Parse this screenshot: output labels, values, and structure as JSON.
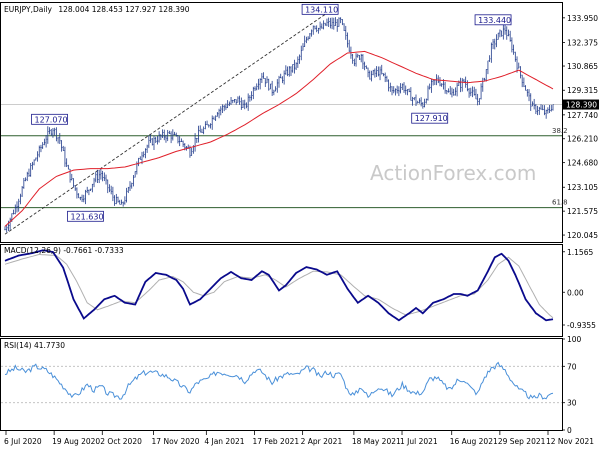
{
  "chart_data": {
    "type": "line",
    "title": "EURJPY,Daily",
    "ohlc_header": "128.004 128.453 127.927 128.390",
    "watermark": "ActionForex.com",
    "current_price": "128.390",
    "colors": {
      "price": "#1f3a8a",
      "ma": "#e0202a",
      "macd": "#0a0a8c",
      "signal": "#b0b0b0",
      "rsi": "#4a90d9",
      "hline": "#2e5e2e",
      "trend": "#333333"
    },
    "price_panel": {
      "ylim": [
        119.6,
        134.9
      ],
      "y_ticks": [
        "133.950",
        "132.375",
        "130.865",
        "129.315",
        "127.740",
        "126.210",
        "124.680",
        "123.105",
        "121.575",
        "120.045"
      ],
      "horizontal_levels": [
        {
          "value": 126.4,
          "label": "38.2"
        },
        {
          "value": 121.8,
          "label": "61.8"
        }
      ],
      "callouts": [
        {
          "text": "127.070",
          "x": 26,
          "y": 127.07
        },
        {
          "text": "121.630",
          "x": 47,
          "y": 121.63
        },
        {
          "text": "134.110",
          "x": 184,
          "y": 134.11
        },
        {
          "text": "127.910",
          "x": 248,
          "y": 127.91
        },
        {
          "text": "133.440",
          "x": 285,
          "y": 133.44
        }
      ],
      "trendline": {
        "x": [
          0,
          190
        ],
        "y": [
          120.1,
          134.4
        ]
      },
      "close": [
        [
          0,
          120.4
        ],
        [
          6,
          121.8
        ],
        [
          12,
          123.6
        ],
        [
          18,
          125.0
        ],
        [
          24,
          126.3
        ],
        [
          28,
          126.9
        ],
        [
          32,
          126.1
        ],
        [
          36,
          124.4
        ],
        [
          40,
          123.2
        ],
        [
          44,
          122.4
        ],
        [
          48,
          122.8
        ],
        [
          52,
          123.6
        ],
        [
          56,
          124.0
        ],
        [
          60,
          123.1
        ],
        [
          64,
          122.3
        ],
        [
          68,
          121.9
        ],
        [
          72,
          122.9
        ],
        [
          76,
          124.2
        ],
        [
          80,
          125.3
        ],
        [
          84,
          125.9
        ],
        [
          90,
          126.3
        ],
        [
          96,
          126.5
        ],
        [
          102,
          126.1
        ],
        [
          108,
          125.4
        ],
        [
          112,
          126.4
        ],
        [
          118,
          127.0
        ],
        [
          124,
          128.0
        ],
        [
          130,
          128.4
        ],
        [
          136,
          128.7
        ],
        [
          140,
          128.2
        ],
        [
          146,
          129.6
        ],
        [
          150,
          130.3
        ],
        [
          156,
          129.3
        ],
        [
          160,
          129.9
        ],
        [
          166,
          130.6
        ],
        [
          170,
          130.9
        ],
        [
          176,
          132.6
        ],
        [
          180,
          133.5
        ],
        [
          184,
          133.2
        ],
        [
          188,
          133.6
        ],
        [
          192,
          133.5
        ],
        [
          196,
          133.7
        ],
        [
          200,
          132.3
        ],
        [
          204,
          131.2
        ],
        [
          208,
          131.6
        ],
        [
          212,
          130.2
        ],
        [
          218,
          130.5
        ],
        [
          222,
          130.1
        ],
        [
          226,
          129.2
        ],
        [
          232,
          129.6
        ],
        [
          236,
          129.0
        ],
        [
          240,
          128.6
        ],
        [
          244,
          128.4
        ],
        [
          248,
          129.5
        ],
        [
          252,
          130.0
        ],
        [
          256,
          129.7
        ],
        [
          260,
          129.0
        ],
        [
          264,
          129.5
        ],
        [
          268,
          129.9
        ],
        [
          272,
          129.2
        ],
        [
          276,
          128.6
        ],
        [
          280,
          130.2
        ],
        [
          284,
          132.0
        ],
        [
          288,
          132.8
        ],
        [
          292,
          133.2
        ],
        [
          296,
          132.1
        ],
        [
          300,
          130.6
        ],
        [
          304,
          129.4
        ],
        [
          308,
          128.2
        ],
        [
          312,
          128.1
        ],
        [
          316,
          127.8
        ],
        [
          320,
          128.4
        ]
      ],
      "ma": [
        [
          0,
          120.6
        ],
        [
          10,
          121.6
        ],
        [
          20,
          123.0
        ],
        [
          30,
          123.8
        ],
        [
          40,
          124.2
        ],
        [
          50,
          124.3
        ],
        [
          60,
          124.3
        ],
        [
          70,
          124.4
        ],
        [
          80,
          124.7
        ],
        [
          90,
          125.0
        ],
        [
          100,
          125.4
        ],
        [
          110,
          125.7
        ],
        [
          120,
          126.0
        ],
        [
          130,
          126.5
        ],
        [
          140,
          127.1
        ],
        [
          150,
          127.8
        ],
        [
          160,
          128.4
        ],
        [
          170,
          129.1
        ],
        [
          180,
          130.0
        ],
        [
          190,
          131.0
        ],
        [
          200,
          131.7
        ],
        [
          210,
          131.8
        ],
        [
          220,
          131.4
        ],
        [
          230,
          130.9
        ],
        [
          240,
          130.4
        ],
        [
          250,
          130.0
        ],
        [
          260,
          129.9
        ],
        [
          270,
          129.8
        ],
        [
          280,
          129.9
        ],
        [
          290,
          130.2
        ],
        [
          300,
          130.6
        ],
        [
          310,
          130.0
        ],
        [
          320,
          129.4
        ]
      ]
    },
    "macd_panel": {
      "label": "MACD(12,26,9) -0.7661 -0.7333",
      "ylim": [
        -1.25,
        1.35
      ],
      "y_ticks": [
        "1.1565",
        "0.00",
        "-0.9355"
      ],
      "macd": [
        [
          0,
          0.9
        ],
        [
          8,
          1.05
        ],
        [
          16,
          1.12
        ],
        [
          22,
          1.2
        ],
        [
          28,
          1.15
        ],
        [
          34,
          0.7
        ],
        [
          40,
          -0.2
        ],
        [
          46,
          -0.75
        ],
        [
          52,
          -0.5
        ],
        [
          58,
          -0.2
        ],
        [
          64,
          -0.1
        ],
        [
          70,
          -0.3
        ],
        [
          76,
          -0.35
        ],
        [
          82,
          0.3
        ],
        [
          88,
          0.55
        ],
        [
          94,
          0.5
        ],
        [
          100,
          0.35
        ],
        [
          104,
          0.1
        ],
        [
          108,
          -0.35
        ],
        [
          114,
          -0.2
        ],
        [
          120,
          0.1
        ],
        [
          126,
          0.4
        ],
        [
          132,
          0.58
        ],
        [
          138,
          0.4
        ],
        [
          144,
          0.35
        ],
        [
          150,
          0.6
        ],
        [
          154,
          0.5
        ],
        [
          160,
          0.05
        ],
        [
          164,
          0.2
        ],
        [
          170,
          0.55
        ],
        [
          176,
          0.72
        ],
        [
          182,
          0.65
        ],
        [
          188,
          0.5
        ],
        [
          194,
          0.6
        ],
        [
          200,
          0.1
        ],
        [
          206,
          -0.3
        ],
        [
          212,
          -0.1
        ],
        [
          218,
          -0.3
        ],
        [
          224,
          -0.6
        ],
        [
          230,
          -0.8
        ],
        [
          236,
          -0.6
        ],
        [
          240,
          -0.45
        ],
        [
          244,
          -0.6
        ],
        [
          250,
          -0.3
        ],
        [
          256,
          -0.2
        ],
        [
          262,
          -0.05
        ],
        [
          266,
          -0.05
        ],
        [
          270,
          -0.1
        ],
        [
          276,
          0.05
        ],
        [
          282,
          0.6
        ],
        [
          286,
          1.0
        ],
        [
          290,
          1.1
        ],
        [
          294,
          0.9
        ],
        [
          298,
          0.5
        ],
        [
          304,
          -0.2
        ],
        [
          310,
          -0.6
        ],
        [
          316,
          -0.8
        ],
        [
          320,
          -0.77
        ]
      ],
      "signal": [
        [
          0,
          0.8
        ],
        [
          10,
          0.95
        ],
        [
          20,
          1.08
        ],
        [
          30,
          1.05
        ],
        [
          36,
          0.8
        ],
        [
          42,
          0.3
        ],
        [
          48,
          -0.3
        ],
        [
          54,
          -0.5
        ],
        [
          60,
          -0.4
        ],
        [
          68,
          -0.25
        ],
        [
          76,
          -0.3
        ],
        [
          84,
          0.05
        ],
        [
          90,
          0.35
        ],
        [
          98,
          0.45
        ],
        [
          104,
          0.3
        ],
        [
          110,
          0.0
        ],
        [
          116,
          -0.1
        ],
        [
          122,
          0.0
        ],
        [
          128,
          0.3
        ],
        [
          136,
          0.45
        ],
        [
          144,
          0.4
        ],
        [
          152,
          0.5
        ],
        [
          158,
          0.35
        ],
        [
          164,
          0.15
        ],
        [
          172,
          0.4
        ],
        [
          180,
          0.6
        ],
        [
          188,
          0.58
        ],
        [
          196,
          0.5
        ],
        [
          204,
          0.15
        ],
        [
          210,
          -0.1
        ],
        [
          218,
          -0.2
        ],
        [
          226,
          -0.45
        ],
        [
          234,
          -0.65
        ],
        [
          242,
          -0.55
        ],
        [
          250,
          -0.4
        ],
        [
          258,
          -0.25
        ],
        [
          266,
          -0.1
        ],
        [
          274,
          -0.05
        ],
        [
          282,
          0.35
        ],
        [
          288,
          0.8
        ],
        [
          294,
          1.0
        ],
        [
          300,
          0.75
        ],
        [
          306,
          0.2
        ],
        [
          312,
          -0.35
        ],
        [
          318,
          -0.65
        ],
        [
          320,
          -0.73
        ]
      ]
    },
    "rsi_panel": {
      "label": "RSI(14) 41.7730",
      "ylim": [
        0,
        100
      ],
      "y_ticks": [
        "100",
        "70",
        "30",
        "0"
      ],
      "values": [
        [
          0,
          62
        ],
        [
          6,
          68
        ],
        [
          12,
          64
        ],
        [
          18,
          70
        ],
        [
          24,
          66
        ],
        [
          28,
          60
        ],
        [
          32,
          52
        ],
        [
          36,
          44
        ],
        [
          40,
          36
        ],
        [
          44,
          42
        ],
        [
          48,
          50
        ],
        [
          52,
          44
        ],
        [
          56,
          48
        ],
        [
          60,
          40
        ],
        [
          64,
          38
        ],
        [
          68,
          36
        ],
        [
          72,
          48
        ],
        [
          76,
          56
        ],
        [
          80,
          62
        ],
        [
          84,
          64
        ],
        [
          90,
          62
        ],
        [
          96,
          58
        ],
        [
          102,
          50
        ],
        [
          108,
          42
        ],
        [
          112,
          52
        ],
        [
          118,
          56
        ],
        [
          124,
          64
        ],
        [
          130,
          62
        ],
        [
          136,
          60
        ],
        [
          140,
          54
        ],
        [
          146,
          66
        ],
        [
          150,
          64
        ],
        [
          156,
          52
        ],
        [
          160,
          58
        ],
        [
          166,
          62
        ],
        [
          170,
          60
        ],
        [
          176,
          68
        ],
        [
          180,
          66
        ],
        [
          184,
          58
        ],
        [
          188,
          64
        ],
        [
          192,
          60
        ],
        [
          196,
          62
        ],
        [
          200,
          44
        ],
        [
          204,
          38
        ],
        [
          208,
          48
        ],
        [
          212,
          36
        ],
        [
          218,
          48
        ],
        [
          222,
          44
        ],
        [
          226,
          38
        ],
        [
          232,
          50
        ],
        [
          236,
          44
        ],
        [
          240,
          40
        ],
        [
          244,
          42
        ],
        [
          248,
          56
        ],
        [
          252,
          58
        ],
        [
          256,
          50
        ],
        [
          260,
          44
        ],
        [
          264,
          54
        ],
        [
          268,
          56
        ],
        [
          272,
          46
        ],
        [
          276,
          40
        ],
        [
          280,
          58
        ],
        [
          284,
          68
        ],
        [
          288,
          72
        ],
        [
          292,
          66
        ],
        [
          296,
          54
        ],
        [
          300,
          44
        ],
        [
          304,
          40
        ],
        [
          308,
          34
        ],
        [
          312,
          38
        ],
        [
          316,
          36
        ],
        [
          320,
          42
        ]
      ]
    },
    "x_ticks": [
      {
        "label": "6 Jul 2020",
        "x": 0
      },
      {
        "label": "19 Aug 2020",
        "x": 31
      },
      {
        "label": "2 Oct 2020",
        "x": 62
      },
      {
        "label": "17 Nov 2020",
        "x": 95
      },
      {
        "label": "4 Jan 2021",
        "x": 129
      },
      {
        "label": "17 Feb 2021",
        "x": 160
      },
      {
        "label": "2 Apr 2021",
        "x": 191
      },
      {
        "label": "18 May 2021",
        "x": 224
      },
      {
        "label": "1 Jul 2021",
        "x": 255
      },
      {
        "label": "16 Aug 2021",
        "x": 287
      },
      {
        "label": "29 Sep 2021",
        "x": 318
      },
      {
        "label": "12 Nov 2021",
        "x": 349
      }
    ]
  }
}
